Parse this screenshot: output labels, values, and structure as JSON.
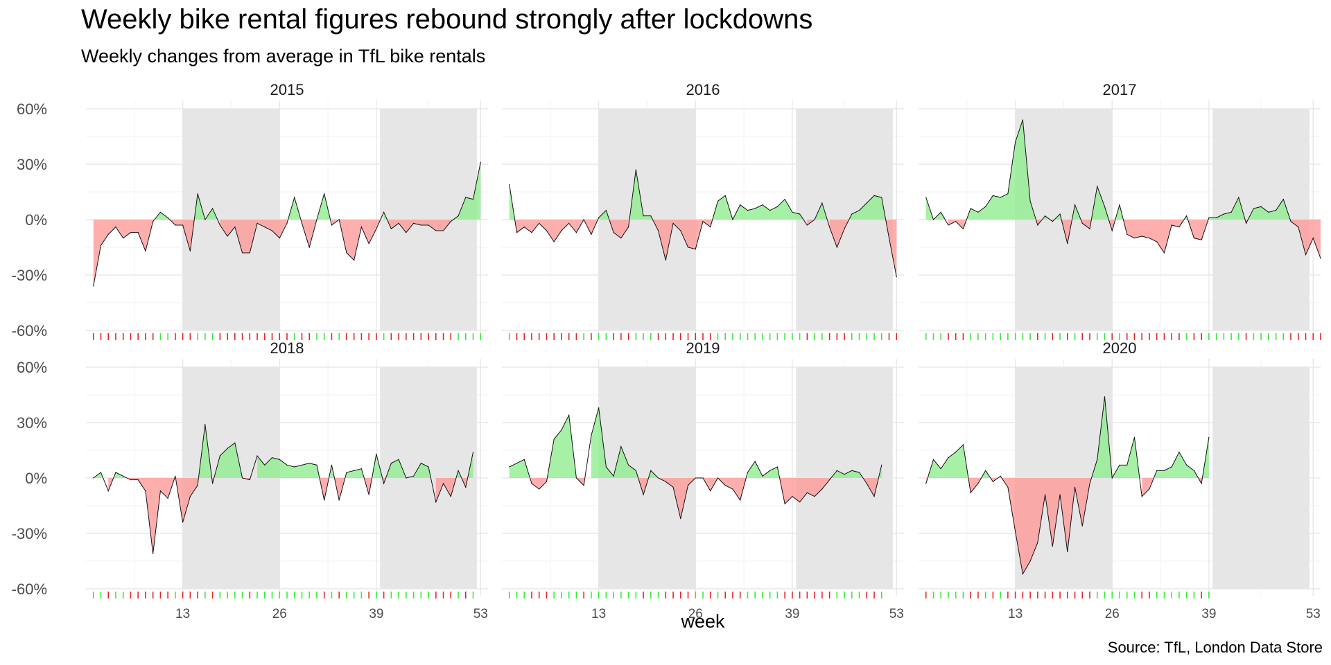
{
  "title": "Weekly bike rental figures rebound strongly after lockdowns",
  "subtitle": "Weekly changes from average in TfL bike rentals",
  "caption": "Source: TfL, London Data Store",
  "chart_data": {
    "type": "area",
    "xlabel": "week",
    "ylabel": "",
    "x_ticks": [
      13,
      26,
      39,
      53
    ],
    "y_ticks": [
      -0.6,
      -0.3,
      0,
      0.3,
      0.6
    ],
    "y_tick_labels": [
      "-60%",
      "-30%",
      "0%",
      "30%",
      "60%"
    ],
    "xlim": [
      0,
      54
    ],
    "ylim": [
      -0.6,
      0.6
    ],
    "grid": true,
    "positive_color": "#90ee90",
    "negative_color": "#ff9a9a",
    "rug_positive_color": "#33ee33",
    "rug_negative_color": "#ee2222",
    "shaded_color": "#e6e6e6",
    "shaded_weeks": [
      [
        13,
        26
      ],
      [
        39.5,
        52.5
      ]
    ],
    "panels": [
      {
        "year": "2015",
        "weeks_start": 1,
        "values": [
          -0.36,
          -0.14,
          -0.08,
          -0.04,
          -0.1,
          -0.07,
          -0.07,
          -0.17,
          -0.01,
          0.04,
          0.01,
          -0.03,
          -0.03,
          -0.17,
          0.14,
          0.0,
          0.06,
          -0.03,
          -0.09,
          -0.04,
          -0.18,
          -0.18,
          -0.02,
          -0.04,
          -0.06,
          -0.1,
          -0.02,
          0.12,
          -0.02,
          -0.15,
          0.0,
          0.14,
          -0.03,
          0.0,
          -0.18,
          -0.22,
          -0.04,
          -0.13,
          -0.05,
          0.04,
          -0.05,
          -0.02,
          -0.07,
          -0.02,
          -0.03,
          -0.03,
          -0.06,
          -0.06,
          -0.01,
          0.02,
          0.12,
          0.11,
          0.31
        ]
      },
      {
        "year": "2016",
        "weeks_start": 1,
        "values": [
          0.19,
          -0.07,
          -0.04,
          -0.07,
          -0.02,
          -0.06,
          -0.12,
          -0.06,
          -0.02,
          -0.07,
          0.0,
          -0.08,
          0.01,
          0.05,
          -0.07,
          -0.1,
          -0.04,
          0.27,
          0.02,
          0.02,
          -0.06,
          -0.22,
          -0.02,
          -0.06,
          -0.15,
          -0.16,
          -0.01,
          -0.04,
          0.1,
          0.13,
          0.0,
          0.08,
          0.05,
          0.06,
          0.08,
          0.05,
          0.07,
          0.11,
          0.04,
          0.03,
          -0.03,
          0.0,
          0.09,
          -0.04,
          -0.15,
          -0.05,
          0.03,
          0.05,
          0.09,
          0.13,
          0.12,
          -0.1,
          -0.31
        ]
      },
      {
        "year": "2017",
        "weeks_start": 1,
        "values": [
          0.12,
          0.0,
          0.04,
          -0.03,
          -0.01,
          -0.05,
          0.06,
          0.04,
          0.07,
          0.13,
          0.12,
          0.14,
          0.42,
          0.54,
          0.1,
          -0.03,
          0.02,
          -0.01,
          0.03,
          -0.13,
          0.08,
          -0.02,
          -0.05,
          0.18,
          0.07,
          -0.06,
          0.08,
          -0.08,
          -0.1,
          -0.09,
          -0.1,
          -0.12,
          -0.18,
          -0.03,
          -0.04,
          0.02,
          -0.1,
          -0.11,
          0.01,
          0.01,
          0.03,
          0.04,
          0.12,
          -0.02,
          0.06,
          0.07,
          0.04,
          0.05,
          0.11,
          -0.01,
          -0.04,
          -0.19,
          -0.1,
          -0.21
        ]
      },
      {
        "year": "2018",
        "weeks_start": 1,
        "values": [
          0.0,
          0.03,
          -0.07,
          0.03,
          0.01,
          -0.01,
          -0.01,
          -0.07,
          -0.41,
          -0.07,
          -0.11,
          0.01,
          -0.24,
          -0.1,
          -0.04,
          0.29,
          -0.03,
          0.12,
          0.16,
          0.19,
          0.0,
          -0.01,
          0.12,
          0.07,
          0.11,
          0.1,
          0.07,
          0.06,
          0.07,
          0.08,
          0.07,
          -0.12,
          0.07,
          -0.12,
          0.03,
          0.04,
          0.05,
          -0.09,
          0.13,
          -0.03,
          0.08,
          0.1,
          0.0,
          0.01,
          0.08,
          0.06,
          -0.13,
          -0.03,
          -0.1,
          0.04,
          -0.05,
          0.14
        ]
      },
      {
        "year": "2019",
        "weeks_start": 1,
        "values": [
          0.06,
          0.08,
          0.1,
          -0.03,
          -0.06,
          -0.02,
          0.21,
          0.26,
          0.34,
          0.0,
          -0.04,
          0.23,
          0.38,
          0.06,
          0.01,
          0.17,
          0.07,
          0.04,
          -0.09,
          0.04,
          0.0,
          -0.02,
          -0.05,
          -0.22,
          -0.04,
          0.0,
          0.0,
          -0.07,
          0.0,
          -0.04,
          -0.06,
          -0.12,
          0.03,
          0.09,
          0.01,
          0.04,
          0.06,
          -0.14,
          -0.1,
          -0.13,
          -0.08,
          -0.1,
          -0.06,
          -0.01,
          0.04,
          0.02,
          0.04,
          0.03,
          -0.03,
          -0.1,
          0.07
        ]
      },
      {
        "year": "2020",
        "weeks_start": 1,
        "values": [
          -0.03,
          0.1,
          0.05,
          0.11,
          0.14,
          0.18,
          -0.08,
          -0.03,
          0.04,
          -0.02,
          0.01,
          -0.05,
          -0.29,
          -0.52,
          -0.45,
          -0.35,
          -0.09,
          -0.37,
          -0.09,
          -0.4,
          -0.05,
          -0.26,
          -0.03,
          0.1,
          0.44,
          0.0,
          0.07,
          0.07,
          0.22,
          -0.1,
          -0.06,
          0.04,
          0.04,
          0.06,
          0.14,
          0.07,
          0.04,
          -0.03,
          0.22
        ]
      }
    ]
  }
}
